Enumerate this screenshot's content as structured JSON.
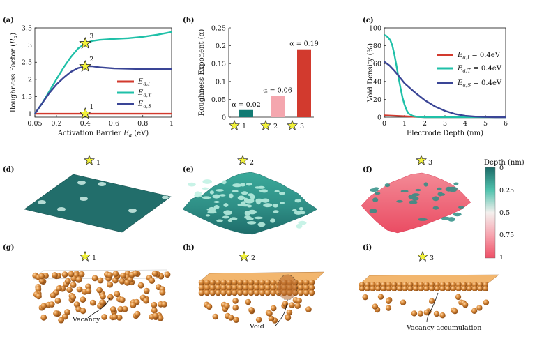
{
  "colors": {
    "red": "#d23a2e",
    "teal": "#1fc0a8",
    "navy": "#3a4596",
    "pink": "#f4a6ae",
    "darkteal": "#127a73",
    "star": "#f2f23a",
    "sphere": "#c9752a",
    "surf_top": "#3aa99a",
    "surf_low": "#ef5a6f"
  },
  "panels": {
    "a": "(a)",
    "b": "(b)",
    "c": "(c)",
    "d": "(d)",
    "e": "(e)",
    "f": "(f)",
    "g": "(g)",
    "h": "(h)",
    "i": "(i)"
  },
  "stars": {
    "one": "1",
    "two": "2",
    "three": "3"
  },
  "chart_data": [
    {
      "type": "line",
      "id": "a",
      "ylabel": "Roughness Factor (R_a)",
      "xlabel": "Activation Barrier E_a (eV)",
      "xlim": [
        0.05,
        1.0
      ],
      "ylim": [
        0.9,
        3.5
      ],
      "xticks": [
        "0.05",
        "0.2",
        "0.4",
        "0.6",
        "0.8",
        "1"
      ],
      "xtick_values": [
        0.05,
        0.2,
        0.4,
        0.6,
        0.8,
        1.0
      ],
      "yticks": [
        "1",
        "1.5",
        "2",
        "2.5",
        "3",
        "3.5"
      ],
      "ytick_values": [
        1,
        1.5,
        2,
        2.5,
        3,
        3.5
      ],
      "series": [
        {
          "name": "E_a,I",
          "color": "#d23a2e",
          "x": [
            0.05,
            0.2,
            0.4,
            0.6,
            0.8,
            1.0
          ],
          "y": [
            1.0,
            1.0,
            1.0,
            1.0,
            1.0,
            1.0
          ]
        },
        {
          "name": "E_a,T",
          "color": "#1fc0a8",
          "x": [
            0.05,
            0.1,
            0.15,
            0.2,
            0.25,
            0.3,
            0.35,
            0.4,
            0.45,
            0.5,
            0.6,
            0.7,
            0.8,
            0.9,
            1.0
          ],
          "y": [
            1.0,
            1.3,
            1.65,
            2.0,
            2.35,
            2.65,
            2.9,
            3.05,
            3.12,
            3.15,
            3.18,
            3.2,
            3.24,
            3.3,
            3.38
          ]
        },
        {
          "name": "E_a,S",
          "color": "#3a4596",
          "x": [
            0.05,
            0.1,
            0.15,
            0.2,
            0.25,
            0.3,
            0.35,
            0.4,
            0.45,
            0.5,
            0.6,
            0.7,
            0.8,
            0.9,
            1.0
          ],
          "y": [
            1.0,
            1.3,
            1.6,
            1.85,
            2.05,
            2.22,
            2.33,
            2.38,
            2.38,
            2.35,
            2.32,
            2.31,
            2.3,
            2.3,
            2.3
          ]
        }
      ],
      "markers": [
        {
          "x": 0.4,
          "y": 1.0,
          "label": "1"
        },
        {
          "x": 0.4,
          "y": 2.38,
          "label": "2"
        },
        {
          "x": 0.4,
          "y": 3.05,
          "label": "3"
        }
      ]
    },
    {
      "type": "bar",
      "id": "b",
      "ylabel": "Roughness Exponent (α)",
      "ylim": [
        0,
        0.25
      ],
      "yticks": [
        "0",
        "0.05",
        "0.1",
        "0.15",
        "0.2",
        "0.25"
      ],
      "ytick_values": [
        0,
        0.05,
        0.1,
        0.15,
        0.2,
        0.25
      ],
      "categories": [
        "1",
        "2",
        "3"
      ],
      "values": [
        0.02,
        0.06,
        0.19
      ],
      "bar_colors": [
        "#127a73",
        "#f4a6ae",
        "#d23a2e"
      ],
      "value_labels": [
        "α = 0.02",
        "α = 0.06",
        "α = 0.19"
      ]
    },
    {
      "type": "line",
      "id": "c",
      "ylabel": "Void Density (%)",
      "xlabel": "Electrode Depth (nm)",
      "xlim": [
        0,
        6
      ],
      "ylim": [
        0,
        100
      ],
      "xticks": [
        "0",
        "1",
        "2",
        "3",
        "4",
        "5",
        "6"
      ],
      "xtick_values": [
        0,
        1,
        2,
        3,
        4,
        5,
        6
      ],
      "yticks": [
        "0",
        "20",
        "40",
        "60",
        "80",
        "100"
      ],
      "ytick_values": [
        0,
        20,
        40,
        60,
        80,
        100
      ],
      "series": [
        {
          "name": "E_a,I = 0.4eV",
          "color": "#d23a2e",
          "x": [
            0,
            0.5,
            1,
            1.5,
            2,
            3,
            4,
            5,
            6
          ],
          "y": [
            2,
            1.5,
            1,
            0.5,
            0,
            0,
            0,
            0,
            0
          ]
        },
        {
          "name": "E_a,T = 0.4eV",
          "color": "#1fc0a8",
          "x": [
            0,
            0.1,
            0.2,
            0.3,
            0.4,
            0.5,
            0.6,
            0.7,
            0.8,
            0.9,
            1.0,
            1.1,
            1.2,
            1.4,
            1.6,
            2,
            3,
            4,
            5,
            6
          ],
          "y": [
            92,
            91,
            89,
            86,
            80,
            70,
            58,
            45,
            33,
            22,
            14,
            8,
            4,
            1.5,
            0.5,
            0,
            0,
            0,
            0,
            0
          ]
        },
        {
          "name": "E_a,S = 0.4eV",
          "color": "#3a4596",
          "x": [
            0,
            0.25,
            0.5,
            0.75,
            1,
            1.5,
            2,
            2.5,
            3,
            3.5,
            4,
            4.5,
            5,
            5.5,
            6
          ],
          "y": [
            62,
            58,
            52,
            45,
            38,
            28,
            19,
            12,
            7,
            3.5,
            1.5,
            0.6,
            0.2,
            0,
            0
          ]
        }
      ]
    }
  ],
  "colorbar": {
    "title": "Depth (nm)",
    "ticks": [
      "0",
      "0.25",
      "0.5",
      "0.75",
      "1"
    ]
  },
  "annotations": {
    "vacancy": "Vacancy",
    "void": "Void",
    "vacancy_accumulation": "Vacancy accumulation"
  }
}
